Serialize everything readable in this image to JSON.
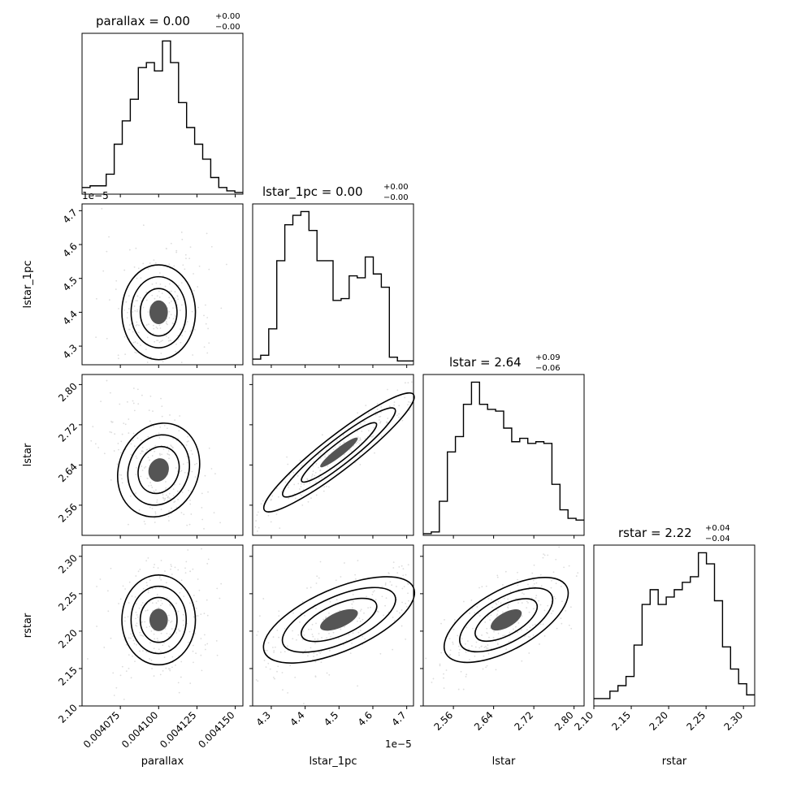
{
  "chart_data": {
    "type": "corner",
    "parameters": [
      "parallax",
      "lstar_1pc",
      "lstar",
      "rstar"
    ],
    "titles": [
      {
        "param": "parallax",
        "text": "parallax = 0.00",
        "upper": "+0.00",
        "lower": "−0.00"
      },
      {
        "param": "lstar_1pc",
        "text": "lstar_1pc = 0.00",
        "upper": "+0.00",
        "lower": "−0.00"
      },
      {
        "param": "lstar",
        "text": "lstar = 2.64",
        "upper": "+0.09",
        "lower": "−0.06"
      },
      {
        "param": "rstar",
        "text": "rstar = 2.22",
        "upper": "+0.04",
        "lower": "−0.04"
      }
    ],
    "axis_labels": {
      "x": [
        "parallax",
        "lstar_1pc",
        "lstar",
        "rstar"
      ],
      "y": [
        "lstar_1pc",
        "lstar",
        "rstar"
      ]
    },
    "offset_labels": {
      "lstar_1pc_y": "1e−5",
      "lstar_1pc_x": "1e−5"
    },
    "ranges": {
      "parallax": [
        0.00405,
        0.004155
      ],
      "lstar_1pc": [
        4.245,
        4.72
      ],
      "lstar": [
        2.5,
        2.82
      ],
      "rstar": [
        2.1,
        2.315
      ]
    },
    "ticks": {
      "parallax": {
        "values": [
          0.004075,
          0.0041,
          0.004125,
          0.00415
        ],
        "labels": [
          "0.004075",
          "0.004100",
          "0.004125",
          "0.004150"
        ]
      },
      "lstar_1pc": {
        "values": [
          4.3,
          4.4,
          4.5,
          4.6,
          4.7
        ],
        "labels": [
          "4.3",
          "4.4",
          "4.5",
          "4.6",
          "4.7"
        ]
      },
      "lstar": {
        "values": [
          2.56,
          2.64,
          2.72,
          2.8
        ],
        "labels": [
          "2.56",
          "2.64",
          "2.72",
          "2.80"
        ]
      },
      "rstar": {
        "values": [
          2.1,
          2.15,
          2.2,
          2.25,
          2.3
        ],
        "labels": [
          "2.10",
          "2.15",
          "2.20",
          "2.25",
          "2.30"
        ]
      }
    },
    "histograms": {
      "parallax": [
        0.04,
        0.05,
        0.05,
        0.12,
        0.3,
        0.44,
        0.57,
        0.76,
        0.79,
        0.74,
        0.92,
        0.79,
        0.55,
        0.4,
        0.3,
        0.21,
        0.1,
        0.04,
        0.02,
        0.01
      ],
      "lstar_1pc": [
        0.03,
        0.05,
        0.19,
        0.55,
        0.74,
        0.79,
        0.81,
        0.71,
        0.55,
        0.55,
        0.34,
        0.35,
        0.47,
        0.46,
        0.57,
        0.48,
        0.41,
        0.04,
        0.02,
        0.02
      ],
      "lstar": [
        0.01,
        0.02,
        0.2,
        0.49,
        0.58,
        0.77,
        0.9,
        0.77,
        0.74,
        0.73,
        0.63,
        0.55,
        0.57,
        0.54,
        0.55,
        0.54,
        0.3,
        0.15,
        0.1,
        0.09
      ],
      "rstar": [
        0.04,
        0.04,
        0.08,
        0.11,
        0.16,
        0.33,
        0.55,
        0.63,
        0.55,
        0.59,
        0.63,
        0.67,
        0.7,
        0.83,
        0.77,
        0.57,
        0.32,
        0.2,
        0.12,
        0.06
      ]
    }
  }
}
